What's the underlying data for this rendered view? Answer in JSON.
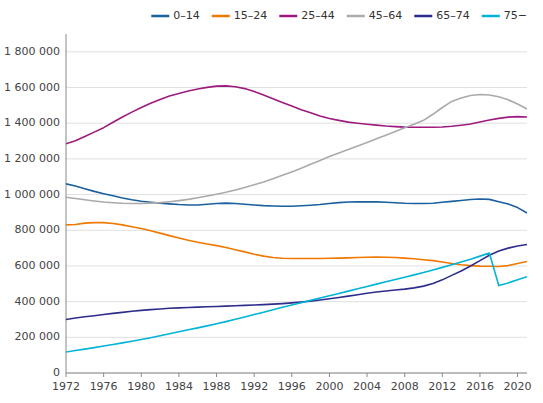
{
  "chart_data": {
    "type": "line",
    "x": [
      1972,
      1973,
      1974,
      1975,
      1976,
      1977,
      1978,
      1979,
      1980,
      1981,
      1982,
      1983,
      1984,
      1985,
      1986,
      1987,
      1988,
      1989,
      1990,
      1991,
      1992,
      1993,
      1994,
      1995,
      1996,
      1997,
      1998,
      1999,
      2000,
      2001,
      2002,
      2003,
      2004,
      2005,
      2006,
      2007,
      2008,
      2009,
      2010,
      2011,
      2012,
      2013,
      2014,
      2015,
      2016,
      2017,
      2018,
      2019,
      2020,
      2021
    ],
    "series": [
      {
        "name": "0–14",
        "color": "#1a5f9e",
        "values": [
          1060000,
          1048000,
          1033000,
          1018000,
          1005000,
          993000,
          981000,
          971000,
          963000,
          957000,
          952000,
          948000,
          944000,
          942000,
          942000,
          946000,
          950000,
          952000,
          950000,
          946000,
          942000,
          938000,
          936000,
          935000,
          935000,
          937000,
          940000,
          944000,
          950000,
          955000,
          958000,
          959000,
          960000,
          959000,
          957000,
          954000,
          951000,
          950000,
          950000,
          951000,
          957000,
          962000,
          967000,
          972000,
          975000,
          973000,
          960000,
          947000,
          927000,
          897000
        ]
      },
      {
        "name": "15–24",
        "color": "#f07800",
        "values": [
          830000,
          832000,
          840000,
          843000,
          843000,
          838000,
          830000,
          820000,
          810000,
          797000,
          784000,
          770000,
          757000,
          744000,
          733000,
          723000,
          714000,
          703000,
          691000,
          679000,
          666000,
          655000,
          647000,
          643000,
          642000,
          642000,
          642000,
          642000,
          643000,
          644000,
          645000,
          647000,
          649000,
          650000,
          649000,
          647000,
          644000,
          640000,
          635000,
          630000,
          622000,
          614000,
          607000,
          602000,
          599000,
          598000,
          597000,
          602000,
          614000,
          625000
        ]
      },
      {
        "name": "25–44",
        "color": "#9e1a7e",
        "values": [
          1285000,
          1302000,
          1325000,
          1350000,
          1375000,
          1405000,
          1435000,
          1462000,
          1488000,
          1512000,
          1533000,
          1552000,
          1567000,
          1581000,
          1592000,
          1601000,
          1608000,
          1609000,
          1604000,
          1594000,
          1578000,
          1558000,
          1537000,
          1516000,
          1496000,
          1476000,
          1458000,
          1441000,
          1426000,
          1416000,
          1406000,
          1400000,
          1394000,
          1389000,
          1384000,
          1381000,
          1378000,
          1377000,
          1377000,
          1377000,
          1379000,
          1383000,
          1389000,
          1396000,
          1407000,
          1418000,
          1427000,
          1434000,
          1437000,
          1435000
        ]
      },
      {
        "name": "45–64",
        "color": "#aaaaaa",
        "values": [
          985000,
          978000,
          971000,
          964000,
          958000,
          954000,
          951000,
          950000,
          950000,
          952000,
          955000,
          960000,
          966000,
          973000,
          982000,
          992000,
          1002000,
          1013000,
          1026000,
          1040000,
          1055000,
          1071000,
          1089000,
          1108000,
          1127000,
          1148000,
          1170000,
          1191000,
          1214000,
          1233000,
          1252000,
          1272000,
          1292000,
          1313000,
          1333000,
          1354000,
          1374000,
          1394000,
          1416000,
          1450000,
          1488000,
          1522000,
          1541000,
          1555000,
          1561000,
          1558000,
          1548000,
          1531000,
          1508000,
          1480000
        ]
      },
      {
        "name": "65–74",
        "color": "#2d2d8c",
        "values": [
          300000,
          308000,
          315000,
          321000,
          328000,
          334000,
          340000,
          346000,
          351000,
          355000,
          359000,
          363000,
          365000,
          367000,
          369000,
          371000,
          373000,
          375000,
          377000,
          379000,
          381000,
          383000,
          386000,
          389000,
          393000,
          398000,
          403000,
          409000,
          416000,
          423000,
          431000,
          439000,
          447000,
          454000,
          460000,
          465000,
          470000,
          477000,
          487000,
          502000,
          522000,
          547000,
          572000,
          600000,
          630000,
          660000,
          684000,
          700000,
          712000,
          720000
        ]
      },
      {
        "name": "75−",
        "color": "#00b4d8",
        "values": [
          118000,
          126000,
          134000,
          142000,
          151000,
          160000,
          169000,
          178000,
          188000,
          198000,
          209000,
          220000,
          231000,
          242000,
          253000,
          264000,
          276000,
          288000,
          301000,
          314000,
          328000,
          341000,
          355000,
          368000,
          381000,
          394000,
          407000,
          420000,
          433000,
          446000,
          459000,
          472000,
          485000,
          498000,
          511000,
          524000,
          537000,
          550000,
          563000,
          577000,
          592000,
          607000,
          622000,
          638000,
          655000,
          672000,
          490000,
          505000,
          522000,
          540000
        ]
      }
    ],
    "xlim": [
      1972,
      2021
    ],
    "xticks": [
      1972,
      1976,
      1980,
      1984,
      1988,
      1992,
      1996,
      2000,
      2004,
      2008,
      2012,
      2016,
      2020
    ],
    "ylim": [
      0,
      1900000
    ],
    "yticks": [
      0,
      {
        "value": 200000,
        "label": "200 000"
      },
      {
        "value": 400000,
        "label": "400 000"
      },
      {
        "value": 600000,
        "label": "600 000"
      },
      {
        "value": 800000,
        "label": "800 000"
      },
      {
        "value": 1000000,
        "label": "1 000 000"
      },
      {
        "value": 1200000,
        "label": "1 200 000"
      },
      {
        "value": 1400000,
        "label": "1 400 000"
      },
      {
        "value": 1600000,
        "label": "1 600 000"
      },
      {
        "value": 1800000,
        "label": "1 800 000"
      }
    ],
    "grid": true,
    "legend": "upper right"
  }
}
